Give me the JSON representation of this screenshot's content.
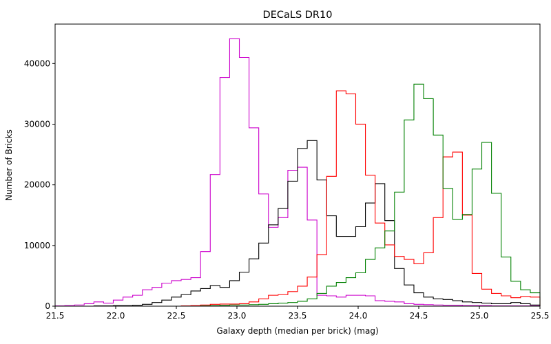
{
  "chart_data": {
    "type": "histogram",
    "title": "DECaLS DR10",
    "xlabel": "Galaxy depth (median per brick) (mag)",
    "ylabel": "Number of Bricks",
    "xlim": [
      21.5,
      25.5
    ],
    "ylim": [
      0,
      46500
    ],
    "xticks": [
      21.5,
      22.0,
      22.5,
      23.0,
      23.5,
      24.0,
      24.5,
      25.0,
      25.5
    ],
    "xtick_labels": [
      "21.5",
      "22.0",
      "22.5",
      "23.0",
      "23.5",
      "24.0",
      "24.5",
      "25.0",
      "25.5"
    ],
    "yticks": [
      0,
      10000,
      20000,
      30000,
      40000
    ],
    "ytick_labels": [
      "0",
      "10000",
      "20000",
      "30000",
      "40000"
    ],
    "grid": false,
    "legend": "none",
    "bin_edges": [
      21.5,
      21.58,
      21.66,
      21.74,
      21.82,
      21.9,
      21.98,
      22.06,
      22.14,
      22.22,
      22.3,
      22.38,
      22.46,
      22.54,
      22.62,
      22.7,
      22.78,
      22.86,
      22.94,
      23.02,
      23.1,
      23.18,
      23.26,
      23.34,
      23.42,
      23.5,
      23.58,
      23.66,
      23.74,
      23.82,
      23.9,
      23.98,
      24.06,
      24.14,
      24.22,
      24.3,
      24.38,
      24.46,
      24.54,
      24.62,
      24.7,
      24.78,
      24.86,
      24.94,
      25.02,
      25.1,
      25.18,
      25.26,
      25.34,
      25.42,
      25.5
    ],
    "series": [
      {
        "color": "#cc00cc",
        "values": [
          50,
          100,
          200,
          400,
          700,
          500,
          1000,
          1500,
          1800,
          2700,
          3100,
          3800,
          4200,
          4400,
          4700,
          9000,
          21700,
          37700,
          44100,
          41000,
          29400,
          18500,
          13000,
          14600,
          22400,
          22900,
          14200,
          1800,
          1700,
          1500,
          1800,
          1800,
          1700,
          900,
          800,
          700,
          400,
          300,
          250,
          200,
          150,
          150,
          100,
          100,
          100,
          50,
          50,
          50,
          50,
          50
        ]
      },
      {
        "color": "#000000",
        "values": [
          0,
          0,
          0,
          0,
          50,
          50,
          100,
          100,
          150,
          300,
          600,
          1000,
          1500,
          1900,
          2500,
          2900,
          3400,
          3100,
          4200,
          5600,
          7800,
          10400,
          13400,
          16100,
          20600,
          26000,
          27300,
          20800,
          14900,
          11500,
          11500,
          13100,
          17000,
          20200,
          14100,
          6200,
          3500,
          2200,
          1500,
          1200,
          1100,
          900,
          700,
          600,
          500,
          400,
          400,
          600,
          400,
          200
        ]
      },
      {
        "color": "#ff0000",
        "values": [
          0,
          0,
          0,
          0,
          0,
          0,
          0,
          0,
          0,
          0,
          0,
          0,
          0,
          50,
          100,
          200,
          300,
          350,
          350,
          400,
          700,
          1200,
          1800,
          1900,
          2400,
          3300,
          4800,
          8500,
          21400,
          35500,
          35000,
          30000,
          21600,
          13700,
          10100,
          8200,
          7700,
          7000,
          8800,
          14600,
          24600,
          25400,
          15000,
          5400,
          2800,
          2100,
          1700,
          1400,
          1600,
          1500
        ]
      },
      {
        "color": "#008000",
        "values": [
          0,
          0,
          0,
          0,
          0,
          0,
          0,
          0,
          0,
          0,
          0,
          0,
          0,
          0,
          0,
          50,
          100,
          150,
          200,
          200,
          250,
          300,
          400,
          500,
          600,
          800,
          1200,
          2100,
          3300,
          3900,
          4700,
          5500,
          7700,
          9600,
          12400,
          18800,
          30700,
          36600,
          34200,
          28200,
          19400,
          14300,
          15100,
          22600,
          27000,
          18600,
          8100,
          4100,
          2700,
          2200
        ]
      }
    ]
  }
}
